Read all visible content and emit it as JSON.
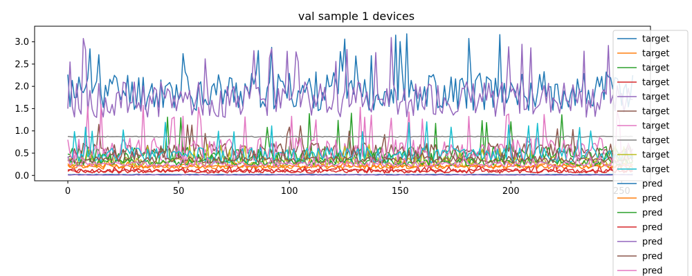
{
  "chart_data": {
    "type": "line",
    "title": "val sample 1 devices",
    "xlabel": "",
    "ylabel": "",
    "xlim": [
      -15,
      263
    ],
    "ylim": [
      -0.12,
      3.35
    ],
    "xticks": [
      0,
      50,
      100,
      150,
      200,
      250
    ],
    "yticks": [
      0.0,
      0.5,
      1.0,
      1.5,
      2.0,
      2.5,
      3.0
    ],
    "xtick_labels": [
      "0",
      "50",
      "100",
      "150",
      "200",
      "250"
    ],
    "ytick_labels": [
      "0.0",
      "0.5",
      "1.0",
      "1.5",
      "2.0",
      "2.5",
      "3.0"
    ],
    "n_points": 256,
    "legend_position": "upper right",
    "series": [
      {
        "name": "target",
        "color": "#1f77b4",
        "base": 1.9,
        "amp": 0.45,
        "spike": 3.2,
        "seed": 11
      },
      {
        "name": "target",
        "color": "#ff7f0e",
        "base": 0.2,
        "amp": 0.06,
        "spike": 0.35,
        "seed": 12
      },
      {
        "name": "target",
        "color": "#2ca02c",
        "base": 0.45,
        "amp": 0.2,
        "spike": 1.4,
        "seed": 13
      },
      {
        "name": "target",
        "color": "#d62728",
        "base": 0.1,
        "amp": 0.05,
        "spike": 0.25,
        "seed": 14
      },
      {
        "name": "target",
        "color": "#9467bd",
        "base": 1.7,
        "amp": 0.4,
        "spike": 3.1,
        "seed": 15
      },
      {
        "name": "target",
        "color": "#8c564b",
        "base": 0.55,
        "amp": 0.18,
        "spike": 1.15,
        "seed": 16
      },
      {
        "name": "target",
        "color": "#e377c2",
        "base": 0.55,
        "amp": 0.3,
        "spike": 1.6,
        "seed": 17
      },
      {
        "name": "target",
        "color": "#7f7f7f",
        "base": 0.87,
        "amp": 0.01,
        "spike": 0.88,
        "seed": 18
      },
      {
        "name": "target",
        "color": "#bcbd22",
        "base": 0.3,
        "amp": 0.12,
        "spike": 0.7,
        "seed": 19
      },
      {
        "name": "target",
        "color": "#17becf",
        "base": 0.45,
        "amp": 0.18,
        "spike": 1.25,
        "seed": 20
      },
      {
        "name": "pred",
        "color": "#1f77b4",
        "base": 0.02,
        "amp": 0.005,
        "spike": 0.03,
        "seed": 21
      },
      {
        "name": "pred",
        "color": "#ff7f0e",
        "base": 0.2,
        "amp": 0.03,
        "spike": 0.28,
        "seed": 22
      },
      {
        "name": "pred",
        "color": "#2ca02c",
        "base": 0.3,
        "amp": 0.08,
        "spike": 0.55,
        "seed": 23
      },
      {
        "name": "pred",
        "color": "#d62728",
        "base": 0.1,
        "amp": 0.04,
        "spike": 0.22,
        "seed": 24
      },
      {
        "name": "pred",
        "color": "#9467bd",
        "base": 0.01,
        "amp": 0.005,
        "spike": 0.02,
        "seed": 25
      },
      {
        "name": "pred",
        "color": "#8c564b",
        "base": 0.35,
        "amp": 0.08,
        "spike": 0.6,
        "seed": 26
      },
      {
        "name": "pred",
        "color": "#e377c2",
        "base": 0.25,
        "amp": 0.06,
        "spike": 0.45,
        "seed": 27
      }
    ]
  }
}
